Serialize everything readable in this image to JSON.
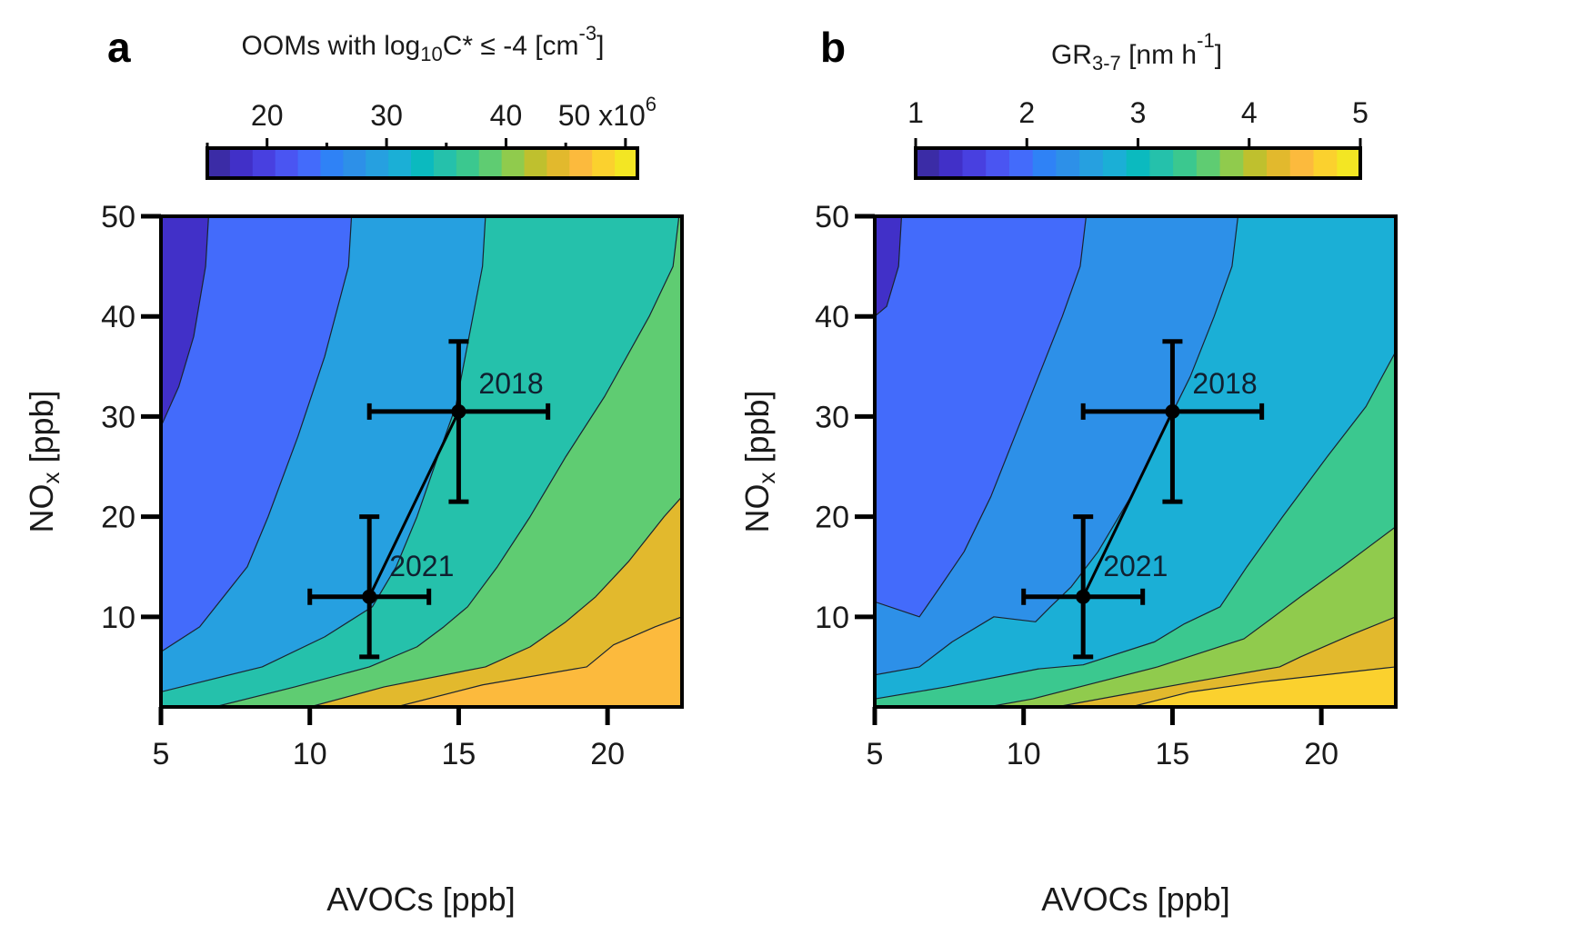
{
  "chart_data": [
    {
      "panel": "a",
      "type": "heatmap",
      "subtype": "filled-contour",
      "title": "",
      "colorbar": {
        "label_parts": {
          "base": "OOMs with log",
          "sub": "10",
          "mid": "C* ≤ -4 [cm",
          "sup": "-3",
          "end": "]"
        },
        "range": [
          15,
          51
        ],
        "ticks": [
          20,
          30,
          40,
          50
        ],
        "tick_labels": [
          "20",
          "30",
          "40",
          "50 x10"
        ],
        "multiplier_sup": "6",
        "minor_ticks": [
          15,
          25,
          35,
          45
        ],
        "colors": [
          "#3b2ca6",
          "#4130c8",
          "#4840e0",
          "#4a55f2",
          "#436bfb",
          "#2f82f6",
          "#2d90e8",
          "#26a0e0",
          "#1bafd6",
          "#0bbabf",
          "#25c1ab",
          "#3bc88f",
          "#5fcc72",
          "#90cb4d",
          "#bfc02e",
          "#e2b92d",
          "#fcba3d",
          "#fbd12e",
          "#f3e623"
        ]
      },
      "xlabel": "AVOCs [ppb]",
      "ylabel_parts": {
        "base": "NO",
        "sub": "x",
        "end": " [ppb]"
      },
      "xlim": [
        5,
        22.5
      ],
      "ylim": [
        1,
        50
      ],
      "xticks": [
        5,
        10,
        15,
        20
      ],
      "yticks": [
        10,
        20,
        30,
        40,
        50
      ],
      "regions": [
        {
          "color": "#4130c8",
          "boundary": []
        },
        {
          "color": "#436bfb",
          "boundary": [
            [
              6.6,
              50
            ],
            [
              6.5,
              45
            ],
            [
              6.1,
              38
            ],
            [
              5.6,
              33
            ],
            [
              5.0,
              29
            ]
          ]
        },
        {
          "color": "#26a0e0",
          "boundary": [
            [
              11.4,
              50
            ],
            [
              11.3,
              45
            ],
            [
              10.5,
              36
            ],
            [
              9.6,
              28
            ],
            [
              8.6,
              20
            ],
            [
              7.9,
              15
            ],
            [
              6.3,
              9
            ],
            [
              5.0,
              6.5
            ]
          ]
        },
        {
          "color": "#25c1ab",
          "boundary": [
            [
              15.9,
              50
            ],
            [
              15.8,
              45
            ],
            [
              14.9,
              31
            ],
            [
              14.3,
              26
            ],
            [
              13.6,
              20
            ],
            [
              12.9,
              15
            ],
            [
              12.1,
              11
            ],
            [
              10.5,
              8
            ],
            [
              8.4,
              5
            ],
            [
              5.0,
              2.5
            ]
          ]
        },
        {
          "color": "#5fcc72",
          "boundary": [
            [
              22.4,
              50
            ],
            [
              22.2,
              45
            ],
            [
              21.4,
              40
            ],
            [
              19.9,
              32
            ],
            [
              18.6,
              26
            ],
            [
              17.4,
              20
            ],
            [
              16.3,
              15
            ],
            [
              15.3,
              11
            ],
            [
              14.5,
              9
            ],
            [
              13.6,
              7
            ],
            [
              12.0,
              5
            ],
            [
              9.5,
              3
            ],
            [
              6.8,
              1
            ]
          ]
        },
        {
          "color": "#e2b92d",
          "boundary": [
            [
              22.5,
              22
            ],
            [
              21.9,
              20
            ],
            [
              20.7,
              15.5
            ],
            [
              19.6,
              12
            ],
            [
              18.6,
              9.5
            ],
            [
              17.4,
              7
            ],
            [
              15.9,
              5
            ],
            [
              12.5,
              3
            ],
            [
              10.0,
              1
            ]
          ]
        },
        {
          "color": "#fcba3d",
          "boundary": [
            [
              22.5,
              10
            ],
            [
              21.6,
              9
            ],
            [
              20.2,
              7.2
            ],
            [
              19.3,
              5
            ],
            [
              15.8,
              3.2
            ],
            [
              12.9,
              1
            ]
          ]
        }
      ],
      "points": [
        {
          "label": "2018",
          "x": 15,
          "y": 30.5,
          "xerr": [
            12,
            18
          ],
          "yerr": [
            21.5,
            37.5
          ]
        },
        {
          "label": "2021",
          "x": 12,
          "y": 12,
          "xerr": [
            10,
            14
          ],
          "yerr": [
            6,
            20
          ]
        }
      ]
    },
    {
      "panel": "b",
      "type": "heatmap",
      "subtype": "filled-contour",
      "title": "",
      "colorbar": {
        "label_parts": {
          "base": "GR",
          "sub": "3-7",
          "mid": " [nm h",
          "sup": "-1",
          "end": "]"
        },
        "range": [
          1,
          5
        ],
        "ticks": [
          1,
          2,
          3,
          4,
          5
        ],
        "tick_labels": [
          "1",
          "2",
          "3",
          "4",
          "5"
        ],
        "colors": [
          "#3b2ca6",
          "#4130c8",
          "#4840e0",
          "#4a55f2",
          "#436bfb",
          "#2f82f6",
          "#2d90e8",
          "#26a0e0",
          "#1bafd6",
          "#0bbabf",
          "#25c1ab",
          "#3bc88f",
          "#5fcc72",
          "#90cb4d",
          "#bfc02e",
          "#e2b92d",
          "#fcba3d",
          "#fbd12e",
          "#f3e623"
        ]
      },
      "xlabel": "AVOCs [ppb]",
      "ylabel_parts": {
        "base": "NO",
        "sub": "x",
        "end": " [ppb]"
      },
      "xlim": [
        5,
        22.5
      ],
      "ylim": [
        1,
        50
      ],
      "xticks": [
        5,
        10,
        15,
        20
      ],
      "yticks": [
        10,
        20,
        30,
        40,
        50
      ],
      "regions": [
        {
          "color": "#4130c8",
          "boundary": []
        },
        {
          "color": "#436bfb",
          "boundary": [
            [
              5.9,
              50
            ],
            [
              5.8,
              45
            ],
            [
              5.4,
              41
            ],
            [
              5.0,
              40
            ]
          ]
        },
        {
          "color": "#2d90e8",
          "boundary": [
            [
              12.1,
              50
            ],
            [
              11.9,
              45
            ],
            [
              11.3,
              40
            ],
            [
              10.5,
              34
            ],
            [
              9.7,
              28
            ],
            [
              8.9,
              22
            ],
            [
              8.0,
              16.5
            ],
            [
              7.2,
              13
            ],
            [
              6.5,
              10
            ],
            [
              5.0,
              11.5
            ]
          ]
        },
        {
          "color": "#1bafd6",
          "boundary": [
            [
              17.2,
              50
            ],
            [
              17.0,
              45
            ],
            [
              16.4,
              40
            ],
            [
              15.6,
              34
            ],
            [
              14.6,
              28
            ],
            [
              13.6,
              22
            ],
            [
              12.5,
              16.5
            ],
            [
              11.6,
              13
            ],
            [
              10.9,
              11
            ],
            [
              10.4,
              9.5
            ],
            [
              9.0,
              10
            ],
            [
              7.6,
              7.5
            ],
            [
              6.5,
              5
            ],
            [
              5.0,
              4.2
            ]
          ]
        },
        {
          "color": "#3bc88f",
          "boundary": [
            [
              22.5,
              36.5
            ],
            [
              21.5,
              31
            ],
            [
              20.2,
              26
            ],
            [
              18.7,
              20
            ],
            [
              17.5,
              15
            ],
            [
              16.6,
              11
            ],
            [
              15.4,
              9.3
            ],
            [
              14.4,
              7.5
            ],
            [
              12.0,
              5.2
            ],
            [
              10.5,
              4.8
            ],
            [
              7.4,
              3
            ],
            [
              5.0,
              1.8
            ]
          ]
        },
        {
          "color": "#90cb4d",
          "boundary": [
            [
              22.5,
              19
            ],
            [
              21.6,
              17
            ],
            [
              20.7,
              15
            ],
            [
              19.3,
              12
            ],
            [
              18.4,
              10
            ],
            [
              17.4,
              7.8
            ],
            [
              14.5,
              5
            ],
            [
              12.4,
              3.4
            ],
            [
              10.3,
              1.8
            ],
            [
              8.8,
              1
            ]
          ]
        },
        {
          "color": "#e2b92d",
          "boundary": [
            [
              22.5,
              10
            ],
            [
              21.0,
              8.2
            ],
            [
              19.3,
              6
            ],
            [
              18.6,
              5
            ],
            [
              15.7,
              3.5
            ],
            [
              13.3,
              2.2
            ],
            [
              11.1,
              1
            ]
          ]
        },
        {
          "color": "#fbd12e",
          "boundary": [
            [
              22.5,
              5
            ],
            [
              20.4,
              4.3
            ],
            [
              18.0,
              3.5
            ],
            [
              15.6,
              2.5
            ],
            [
              13.6,
              1
            ]
          ]
        }
      ],
      "points": [
        {
          "label": "2018",
          "x": 15,
          "y": 30.5,
          "xerr": [
            12,
            18
          ],
          "yerr": [
            21.5,
            37.5
          ]
        },
        {
          "label": "2021",
          "x": 12,
          "y": 12,
          "xerr": [
            10,
            14
          ],
          "yerr": [
            6,
            20
          ]
        }
      ]
    }
  ],
  "panels": {
    "a": {
      "letter": "a"
    },
    "b": {
      "letter": "b"
    }
  }
}
